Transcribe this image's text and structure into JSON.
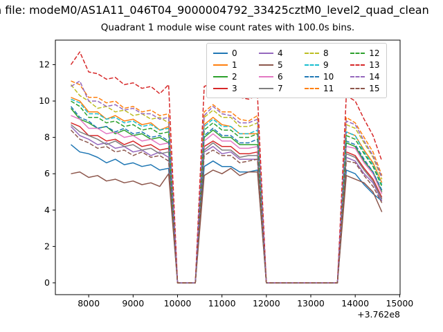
{
  "suptitle": "n file: modeM0/AS1A11_046T04_9000004792_33425cztM0_level2_quad_clean",
  "chart_data": {
    "type": "line",
    "title": "Quadrant 1 module wise count rates with 100.0s bins.",
    "xlabel": "",
    "ylabel": "",
    "x_offset_label": "+3.762e8",
    "xlim": [
      7250,
      15010
    ],
    "ylim": [
      -0.65,
      13.35
    ],
    "x_ticks": [
      8000,
      9000,
      10000,
      11000,
      12000,
      13000,
      14000,
      15000
    ],
    "y_ticks": [
      0,
      2,
      4,
      6,
      8,
      10,
      12
    ],
    "grid": false,
    "legend_position": "upper center",
    "legend_ncol": 4,
    "x": [
      7600,
      7800,
      8000,
      8200,
      8400,
      8600,
      8800,
      9000,
      9200,
      9400,
      9600,
      9800,
      10000,
      10200,
      10400,
      10600,
      10800,
      11000,
      11200,
      11400,
      11600,
      11800,
      12000,
      12200,
      12400,
      12600,
      12800,
      13000,
      13200,
      13400,
      13600,
      13800,
      14000,
      14200,
      14400,
      14600
    ],
    "series": [
      {
        "name": "0",
        "color": "#1f77b4",
        "dashed": false,
        "values": [
          7.6,
          7.2,
          7.1,
          6.9,
          6.6,
          6.8,
          6.5,
          6.6,
          6.4,
          6.5,
          6.2,
          6.3,
          0,
          0,
          0,
          6.4,
          6.7,
          6.4,
          6.4,
          6.1,
          6.1,
          6.2,
          0,
          0,
          0,
          0,
          0,
          0,
          0,
          0,
          0,
          6.2,
          6.0,
          5.4,
          4.9,
          4.5
        ]
      },
      {
        "name": "1",
        "color": "#ff7f0e",
        "dashed": false,
        "values": [
          10.2,
          10.0,
          9.4,
          9.4,
          9.0,
          9.2,
          8.9,
          9.0,
          8.7,
          8.8,
          8.4,
          8.6,
          0,
          0,
          0,
          8.7,
          9.1,
          8.7,
          8.6,
          8.2,
          8.2,
          8.2,
          0,
          0,
          0,
          0,
          0,
          0,
          0,
          0,
          0,
          8.3,
          8.1,
          7.3,
          6.6,
          5.5
        ]
      },
      {
        "name": "2",
        "color": "#2ca02c",
        "dashed": false,
        "values": [
          9.6,
          9.0,
          8.8,
          8.5,
          8.6,
          8.2,
          8.4,
          8.1,
          8.2,
          7.9,
          8.0,
          7.7,
          0,
          0,
          0,
          8.0,
          8.4,
          8.0,
          8.0,
          7.6,
          7.6,
          7.6,
          0,
          0,
          0,
          0,
          0,
          0,
          0,
          0,
          0,
          7.7,
          7.5,
          6.7,
          6.1,
          5.0
        ]
      },
      {
        "name": "3",
        "color": "#d62728",
        "dashed": false,
        "values": [
          8.8,
          8.6,
          8.1,
          8.1,
          7.8,
          7.9,
          7.6,
          7.8,
          7.5,
          7.6,
          7.3,
          7.4,
          0,
          0,
          0,
          7.5,
          7.8,
          7.5,
          7.5,
          7.1,
          7.1,
          7.2,
          0,
          0,
          0,
          0,
          0,
          0,
          0,
          0,
          0,
          7.2,
          7.0,
          6.3,
          5.7,
          4.7
        ]
      },
      {
        "name": "4",
        "color": "#9467bd",
        "dashed": false,
        "values": [
          8.6,
          8.1,
          7.9,
          7.6,
          7.7,
          7.4,
          7.5,
          7.2,
          7.3,
          7.0,
          7.2,
          6.9,
          0,
          0,
          0,
          7.2,
          7.5,
          7.1,
          7.2,
          6.8,
          6.8,
          6.8,
          0,
          0,
          0,
          0,
          0,
          0,
          0,
          0,
          0,
          6.9,
          6.7,
          6.0,
          5.5,
          4.5
        ]
      },
      {
        "name": "5",
        "color": "#8c564b",
        "dashed": false,
        "values": [
          6.0,
          6.1,
          5.8,
          5.9,
          5.6,
          5.7,
          5.5,
          5.6,
          5.4,
          5.5,
          5.3,
          6.0,
          0,
          0,
          0,
          5.9,
          6.2,
          6.0,
          6.3,
          5.9,
          6.1,
          6.1,
          0,
          0,
          0,
          0,
          0,
          0,
          0,
          0,
          0,
          5.9,
          5.7,
          5.5,
          5.0,
          3.9
        ]
      },
      {
        "name": "6",
        "color": "#e377c2",
        "dashed": false,
        "values": [
          9.2,
          9.0,
          8.5,
          8.5,
          8.2,
          8.3,
          8.0,
          8.1,
          7.8,
          7.9,
          7.6,
          7.7,
          0,
          0,
          0,
          7.8,
          8.2,
          7.8,
          7.8,
          7.4,
          7.4,
          7.5,
          0,
          0,
          0,
          0,
          0,
          0,
          0,
          0,
          0,
          7.5,
          7.4,
          6.6,
          6.0,
          4.9
        ]
      },
      {
        "name": "7",
        "color": "#7f7f7f",
        "dashed": false,
        "values": [
          8.7,
          8.3,
          8.1,
          7.9,
          7.6,
          7.8,
          7.5,
          7.6,
          7.3,
          7.4,
          7.1,
          7.2,
          0,
          0,
          0,
          7.3,
          7.7,
          7.3,
          7.3,
          6.9,
          7.0,
          7.0,
          0,
          0,
          0,
          0,
          0,
          0,
          0,
          0,
          0,
          7.1,
          6.9,
          6.2,
          5.6,
          4.6
        ]
      },
      {
        "name": "8",
        "color": "#bcbd22",
        "dashed": true,
        "values": [
          10.9,
          10.3,
          10.0,
          9.6,
          9.7,
          9.4,
          9.5,
          9.2,
          9.3,
          9.0,
          9.1,
          8.8,
          0,
          0,
          0,
          9.1,
          9.5,
          9.1,
          9.1,
          8.6,
          8.6,
          8.8,
          0,
          0,
          0,
          0,
          0,
          0,
          0,
          0,
          0,
          8.7,
          8.5,
          7.7,
          6.9,
          5.7
        ]
      },
      {
        "name": "9",
        "color": "#17becf",
        "dashed": true,
        "values": [
          10.1,
          9.9,
          9.3,
          9.3,
          9.0,
          9.1,
          8.8,
          8.9,
          8.6,
          8.7,
          8.4,
          8.5,
          0,
          0,
          0,
          8.6,
          9.0,
          8.6,
          8.6,
          8.2,
          8.2,
          8.4,
          0,
          0,
          0,
          0,
          0,
          0,
          0,
          0,
          0,
          8.3,
          8.1,
          7.2,
          6.5,
          5.4
        ]
      },
      {
        "name": "10",
        "color": "#1f77b4",
        "dashed": true,
        "values": [
          9.7,
          9.1,
          8.9,
          8.5,
          8.6,
          8.3,
          8.5,
          8.2,
          8.3,
          8.0,
          8.1,
          7.8,
          0,
          0,
          0,
          8.1,
          8.5,
          8.1,
          8.1,
          7.7,
          7.7,
          7.9,
          0,
          0,
          0,
          0,
          0,
          0,
          0,
          0,
          0,
          7.8,
          7.6,
          6.8,
          6.1,
          5.1
        ]
      },
      {
        "name": "11",
        "color": "#ff7f0e",
        "dashed": true,
        "values": [
          11.1,
          10.9,
          10.2,
          10.2,
          9.9,
          10.0,
          9.6,
          9.7,
          9.4,
          9.5,
          9.2,
          9.3,
          0,
          0,
          0,
          9.4,
          9.8,
          9.4,
          9.4,
          9.0,
          8.9,
          9.2,
          0,
          0,
          0,
          0,
          0,
          0,
          0,
          0,
          0,
          9.1,
          8.8,
          8.0,
          7.2,
          5.9
        ]
      },
      {
        "name": "12",
        "color": "#2ca02c",
        "dashed": true,
        "values": [
          10.0,
          9.7,
          9.1,
          9.1,
          8.8,
          8.9,
          8.6,
          8.7,
          8.4,
          8.5,
          8.2,
          8.3,
          0,
          0,
          0,
          8.4,
          8.8,
          8.4,
          8.4,
          8.0,
          8.0,
          8.2,
          0,
          0,
          0,
          0,
          0,
          0,
          0,
          0,
          0,
          8.1,
          7.9,
          7.1,
          6.4,
          5.3
        ]
      },
      {
        "name": "13",
        "color": "#d62728",
        "dashed": true,
        "values": [
          12.0,
          12.7,
          11.6,
          11.5,
          11.2,
          11.3,
          10.9,
          11.0,
          10.7,
          10.8,
          10.4,
          10.9,
          0,
          0,
          0,
          10.8,
          11.0,
          10.7,
          10.6,
          10.2,
          10.1,
          10.3,
          0,
          0,
          0,
          0,
          0,
          0,
          0,
          0,
          0,
          10.3,
          10.0,
          9.0,
          8.1,
          6.7
        ]
      },
      {
        "name": "14",
        "color": "#9467bd",
        "dashed": true,
        "values": [
          10.8,
          11.1,
          10.0,
          10.0,
          9.7,
          9.8,
          9.5,
          9.6,
          9.3,
          9.3,
          9.0,
          9.1,
          0,
          0,
          0,
          9.2,
          9.7,
          9.3,
          9.2,
          8.8,
          8.8,
          9.0,
          0,
          0,
          0,
          0,
          0,
          0,
          0,
          0,
          0,
          8.9,
          8.7,
          7.8,
          7.0,
          5.8
        ]
      },
      {
        "name": "15",
        "color": "#8c564b",
        "dashed": true,
        "values": [
          8.4,
          7.9,
          7.7,
          7.4,
          7.5,
          7.2,
          7.3,
          7.0,
          7.2,
          6.9,
          7.0,
          6.7,
          0,
          0,
          0,
          7.0,
          7.3,
          7.0,
          7.0,
          6.6,
          6.7,
          6.8,
          0,
          0,
          0,
          0,
          0,
          0,
          0,
          0,
          0,
          6.7,
          6.6,
          5.9,
          5.3,
          4.4
        ]
      }
    ]
  }
}
